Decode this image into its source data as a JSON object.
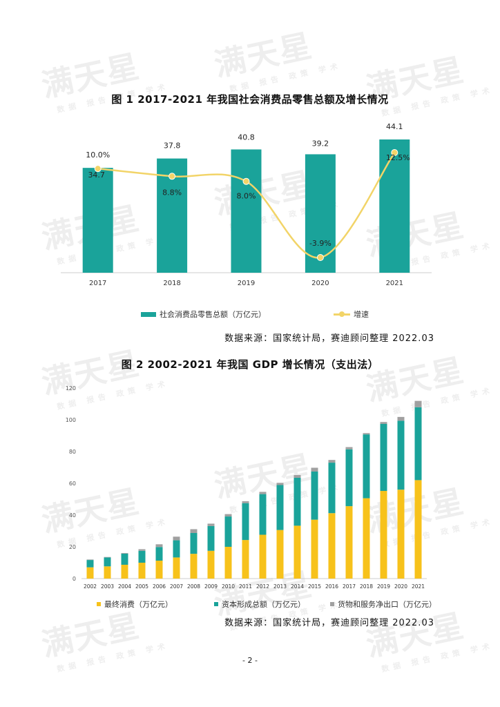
{
  "watermark": {
    "brand": "满天星",
    "tagline": "数据 报告 政策 学术"
  },
  "colors": {
    "teal": "#1aa39a",
    "line": "#f2d468",
    "orange": "#f7c21b",
    "gray": "#a0a0a0"
  },
  "chart1": {
    "title": "图 1    2017-2021 年我国社会消费品零售总额及增长情况",
    "source": "数据来源：国家统计局，赛迪顾问整理 2022.03",
    "legend": {
      "bar": "社会消费品零售总额（万亿元）",
      "line": "增速"
    }
  },
  "chart2": {
    "title": "图 2    2002-2021 年我国 GDP 增长情况（支出法）",
    "source": "数据来源：国家统计局，赛迪顾问整理 2022.03",
    "legend": {
      "s1": "最终消费（万亿元）",
      "s2": "资本形成总额（万亿元）",
      "s3": "货物和服务净出口（万亿元）"
    }
  },
  "page_number": "- 2 -",
  "chart_data": [
    {
      "type": "bar",
      "title": "2017-2021 年我国社会消费品零售总额及增长情况",
      "categories": [
        "2017",
        "2018",
        "2019",
        "2020",
        "2021"
      ],
      "series": [
        {
          "name": "社会消费品零售总额（万亿元）",
          "kind": "bar",
          "values": [
            34.7,
            37.8,
            40.8,
            39.2,
            44.1
          ],
          "labels": [
            "34.7",
            "37.8",
            "40.8",
            "39.2",
            "44.1"
          ]
        },
        {
          "name": "增速",
          "kind": "line",
          "values": [
            10.0,
            8.8,
            8.0,
            -3.9,
            12.5
          ],
          "labels": [
            "10.0%",
            "8.8%",
            "8.0%",
            "-3.9%",
            "12.5%"
          ]
        }
      ]
    },
    {
      "type": "bar",
      "stacked": true,
      "title": "2002-2021 年我国 GDP 增长情况（支出法）",
      "categories": [
        "2002",
        "2003",
        "2004",
        "2005",
        "2006",
        "2007",
        "2008",
        "2009",
        "2010",
        "2011",
        "2012",
        "2013",
        "2014",
        "2015",
        "2016",
        "2017",
        "2018",
        "2019",
        "2020",
        "2021"
      ],
      "ylim": [
        0,
        120
      ],
      "yticks": [
        0,
        20,
        40,
        60,
        80,
        100,
        120
      ],
      "series": [
        {
          "name": "最终消费（万亿元）",
          "values": [
            7.1,
            7.7,
            8.7,
            10.0,
            11.3,
            13.3,
            15.6,
            17.5,
            20.0,
            24.3,
            27.6,
            30.6,
            33.3,
            37.1,
            41.2,
            45.6,
            50.6,
            55.2,
            56.0,
            62.0
          ]
        },
        {
          "name": "资本形成总额（万亿元）",
          "values": [
            4.6,
            5.6,
            7.0,
            7.5,
            8.6,
            10.8,
            13.1,
            15.6,
            19.1,
            23.2,
            25.6,
            28.3,
            30.2,
            30.3,
            31.8,
            35.8,
            40.2,
            42.2,
            43.4,
            45.9
          ]
        },
        {
          "name": "货物和服务净出口（万亿元）",
          "values": [
            0.3,
            0.3,
            0.4,
            1.0,
            1.7,
            2.3,
            2.4,
            1.5,
            1.5,
            1.2,
            1.4,
            1.4,
            1.7,
            2.4,
            1.7,
            1.4,
            0.8,
            1.2,
            2.4,
            4.0
          ]
        }
      ]
    }
  ]
}
